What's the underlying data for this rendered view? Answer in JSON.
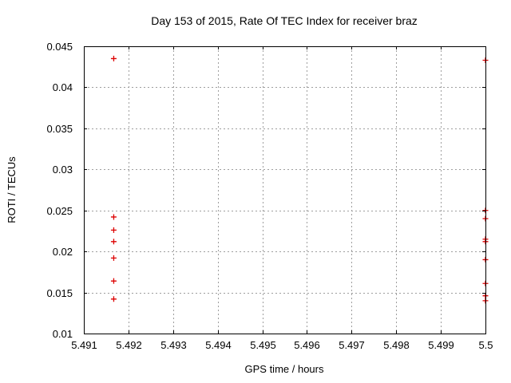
{
  "chart_data": {
    "type": "scatter",
    "title": "Day 153 of 2015, Rate Of TEC Index for receiver braz",
    "xlabel": "GPS time / hours",
    "ylabel": "ROTI / TECUs",
    "xlim": [
      5.491,
      5.5
    ],
    "ylim": [
      0.01,
      0.045
    ],
    "grid": true,
    "legend_position": "none",
    "xticks": {
      "values": [
        5.491,
        5.492,
        5.493,
        5.494,
        5.495,
        5.496,
        5.497,
        5.498,
        5.499,
        5.5
      ],
      "labels": [
        "5.491",
        "5.492",
        "5.493",
        "5.494",
        "5.495",
        "5.496",
        "5.497",
        "5.498",
        "5.499",
        "5.5"
      ]
    },
    "yticks": {
      "values": [
        0.01,
        0.015,
        0.02,
        0.025,
        0.03,
        0.035,
        0.04,
        0.045
      ],
      "labels": [
        "0.01",
        "0.015",
        "0.02",
        "0.025",
        "0.03",
        "0.035",
        "0.04",
        "0.045"
      ]
    },
    "marker": {
      "shape": "plus",
      "color": "#dd0000",
      "size": 7
    },
    "colors": {
      "border": "#000000",
      "grid": "#9e9e9e",
      "text": "#000000",
      "background": "#ffffff"
    },
    "series": [
      {
        "name": "ROTI",
        "points": [
          [
            5.49167,
            0.0435
          ],
          [
            5.49167,
            0.0242
          ],
          [
            5.49167,
            0.0226
          ],
          [
            5.49167,
            0.0212
          ],
          [
            5.49167,
            0.0192
          ],
          [
            5.49167,
            0.0164
          ],
          [
            5.49167,
            0.0142
          ],
          [
            5.5,
            0.0433
          ],
          [
            5.5,
            0.025
          ],
          [
            5.5,
            0.024
          ],
          [
            5.5,
            0.0215
          ],
          [
            5.5,
            0.0212
          ],
          [
            5.5,
            0.019
          ],
          [
            5.5,
            0.0161
          ],
          [
            5.5,
            0.0146
          ],
          [
            5.5,
            0.014
          ]
        ]
      }
    ]
  }
}
